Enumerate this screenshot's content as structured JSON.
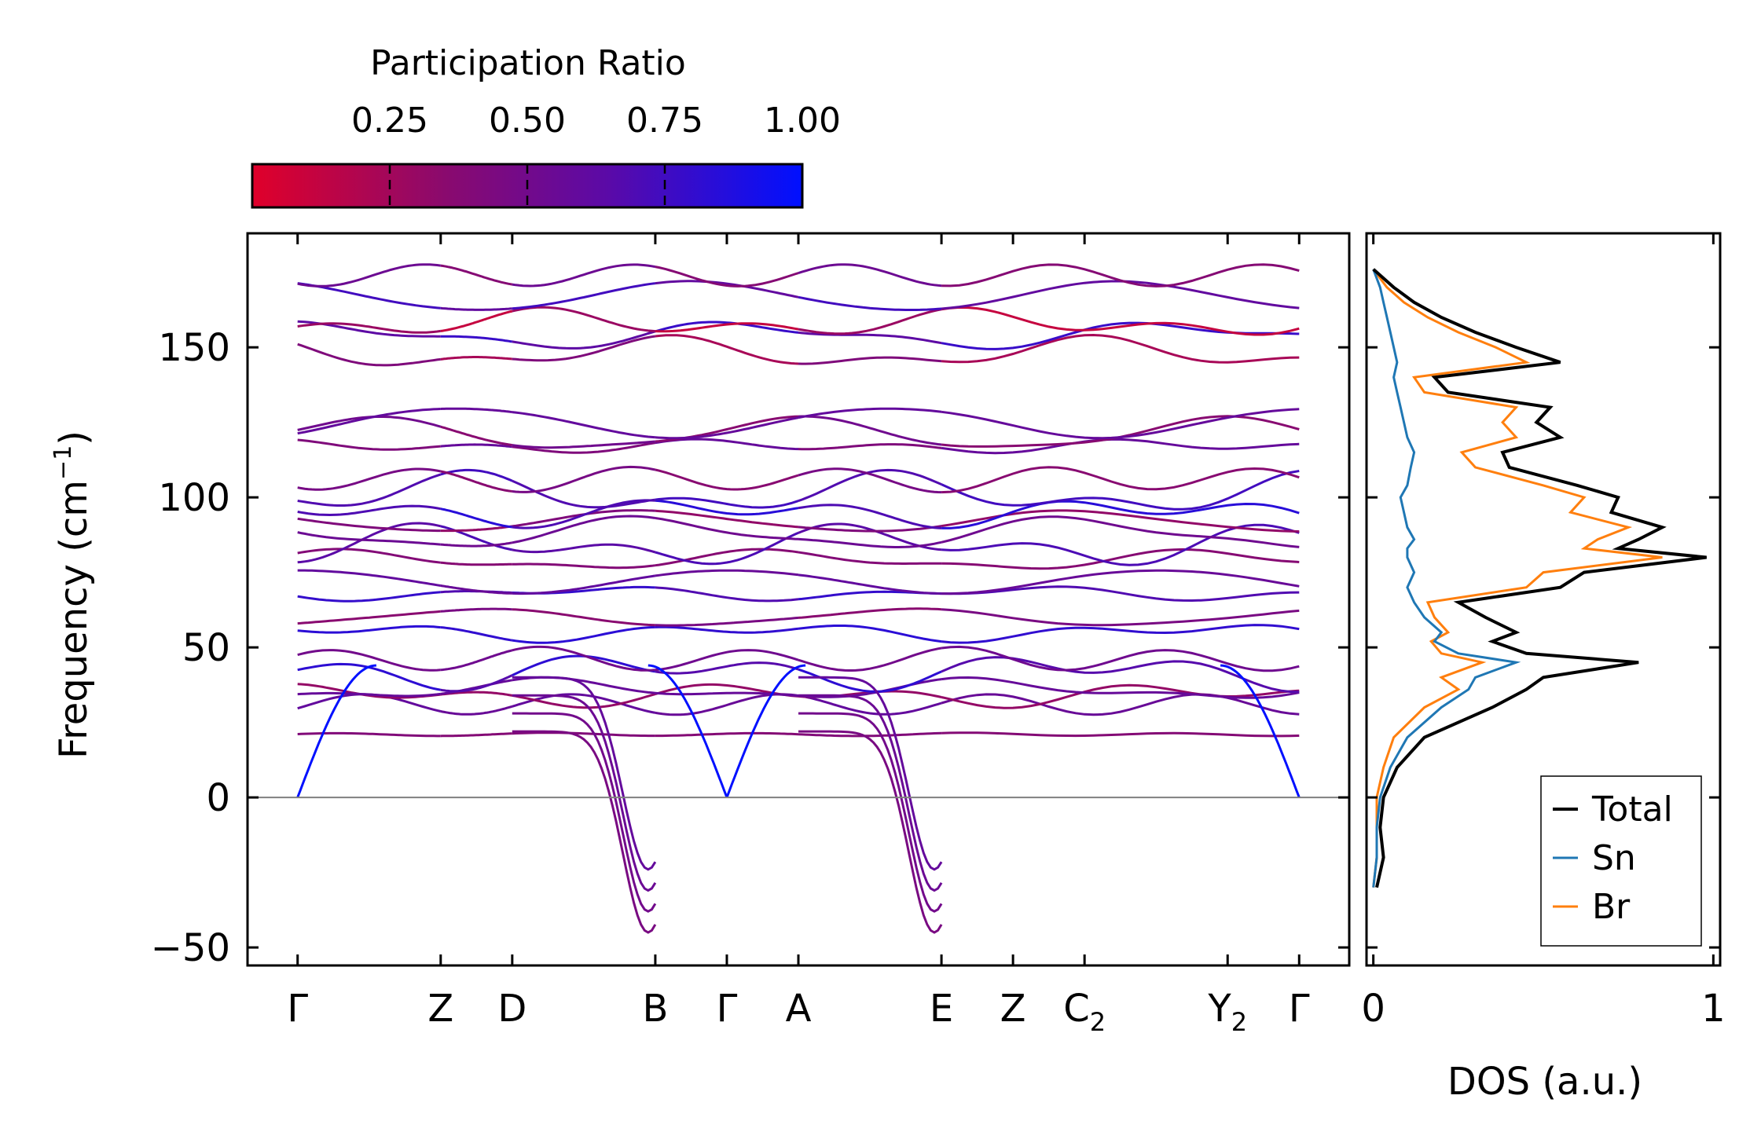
{
  "chart_data": [
    {
      "type": "line",
      "title": "",
      "ylabel": "Frequency (cm",
      "ylabel_sup": "−1",
      "ylabel_tail": ")",
      "ylim": [
        -56,
        188
      ],
      "yticks": [
        -50,
        0,
        50,
        100,
        150
      ],
      "ytick_labels": [
        "−50",
        "0",
        "50",
        "100",
        "150"
      ],
      "path": [
        {
          "label": "Γ",
          "sub": "",
          "x": 0.0
        },
        {
          "label": "Z",
          "sub": "",
          "x": 1.0
        },
        {
          "label": "D",
          "sub": "",
          "x": 1.5
        },
        {
          "label": "B",
          "sub": "",
          "x": 2.5
        },
        {
          "label": "Γ",
          "sub": "",
          "x": 3.0
        },
        {
          "label": "A",
          "sub": "",
          "x": 3.5
        },
        {
          "label": "E",
          "sub": "",
          "x": 4.5
        },
        {
          "label": "Z",
          "sub": "",
          "x": 5.0
        },
        {
          "label": "C",
          "sub": "2",
          "x": 5.5
        },
        {
          "label": "Y",
          "sub": "2",
          "x": 6.5
        },
        {
          "label": "Γ",
          "sub": "",
          "x": 7.0
        }
      ],
      "segment_breaks": [
        1.0,
        1.5,
        2.5,
        3.5,
        4.5
      ],
      "xlim": [
        -0.35,
        7.35
      ],
      "zero_line": 0,
      "colorbar": {
        "label": "Participation Ratio",
        "range": [
          0.0,
          1.0
        ],
        "ticks": [
          0.25,
          0.5,
          0.75,
          1.0
        ],
        "tick_labels": [
          "0.25",
          "0.50",
          "0.75",
          "1.00"
        ],
        "colors": [
          "#e0002a",
          "#8a0a6e",
          "#5a0aa8",
          "#0010ff"
        ]
      },
      "bands_at_gamma": [
        21,
        31,
        34,
        36,
        42,
        46,
        55,
        60,
        68,
        72,
        79,
        84,
        88,
        92,
        95,
        101,
        106,
        117,
        121,
        125,
        148,
        154,
        158,
        167,
        174
      ],
      "acoustic_max": 44,
      "soft_mode_min": -45
    },
    {
      "type": "line",
      "title": "",
      "xlabel": "DOS (a.u.)",
      "xlim": [
        -0.02,
        1.02
      ],
      "xticks": [
        0,
        1
      ],
      "xtick_labels": [
        "0",
        "1"
      ],
      "ylim": [
        -56,
        188
      ],
      "legend_position": "bottom-right",
      "series": [
        {
          "name": "Total",
          "color": "#000000",
          "freq": [
            -30,
            -20,
            -10,
            0,
            10,
            20,
            30,
            36,
            40,
            45,
            48,
            52,
            55,
            60,
            65,
            70,
            75,
            80,
            83,
            86,
            90,
            95,
            100,
            104,
            110,
            115,
            120,
            125,
            130,
            135,
            140,
            145,
            150,
            155,
            160,
            165,
            170,
            176
          ],
          "dos": [
            0.01,
            0.03,
            0.02,
            0.03,
            0.07,
            0.15,
            0.35,
            0.45,
            0.5,
            0.78,
            0.45,
            0.35,
            0.42,
            0.33,
            0.25,
            0.55,
            0.62,
            0.98,
            0.72,
            0.78,
            0.85,
            0.7,
            0.72,
            0.6,
            0.4,
            0.38,
            0.55,
            0.48,
            0.52,
            0.22,
            0.18,
            0.55,
            0.42,
            0.3,
            0.2,
            0.12,
            0.06,
            0.0
          ]
        },
        {
          "name": "Sn",
          "color": "#1f77b4",
          "freq": [
            -30,
            -20,
            -10,
            0,
            10,
            20,
            30,
            36,
            40,
            45,
            48,
            52,
            55,
            60,
            65,
            70,
            75,
            80,
            83,
            86,
            90,
            95,
            100,
            104,
            110,
            115,
            120,
            125,
            130,
            135,
            140,
            145,
            150,
            155,
            160,
            165,
            170,
            176
          ],
          "dos": [
            0.0,
            0.01,
            0.01,
            0.02,
            0.05,
            0.1,
            0.2,
            0.28,
            0.3,
            0.42,
            0.25,
            0.18,
            0.2,
            0.15,
            0.12,
            0.1,
            0.12,
            0.1,
            0.1,
            0.12,
            0.1,
            0.09,
            0.08,
            0.1,
            0.11,
            0.12,
            0.1,
            0.09,
            0.08,
            0.07,
            0.06,
            0.07,
            0.06,
            0.05,
            0.04,
            0.03,
            0.02,
            0.0
          ]
        },
        {
          "name": "Br",
          "color": "#ff7f0e",
          "freq": [
            -30,
            -20,
            -10,
            0,
            10,
            20,
            30,
            36,
            40,
            45,
            48,
            52,
            55,
            60,
            65,
            70,
            75,
            80,
            83,
            86,
            90,
            95,
            100,
            104,
            110,
            115,
            120,
            125,
            130,
            135,
            140,
            145,
            150,
            155,
            160,
            165,
            170,
            176
          ],
          "dos": [
            0.0,
            0.01,
            0.01,
            0.01,
            0.03,
            0.06,
            0.15,
            0.25,
            0.2,
            0.32,
            0.2,
            0.17,
            0.22,
            0.18,
            0.16,
            0.45,
            0.5,
            0.85,
            0.62,
            0.66,
            0.75,
            0.58,
            0.62,
            0.5,
            0.3,
            0.26,
            0.42,
            0.38,
            0.42,
            0.15,
            0.12,
            0.45,
            0.36,
            0.25,
            0.16,
            0.09,
            0.04,
            0.0
          ]
        }
      ]
    }
  ]
}
